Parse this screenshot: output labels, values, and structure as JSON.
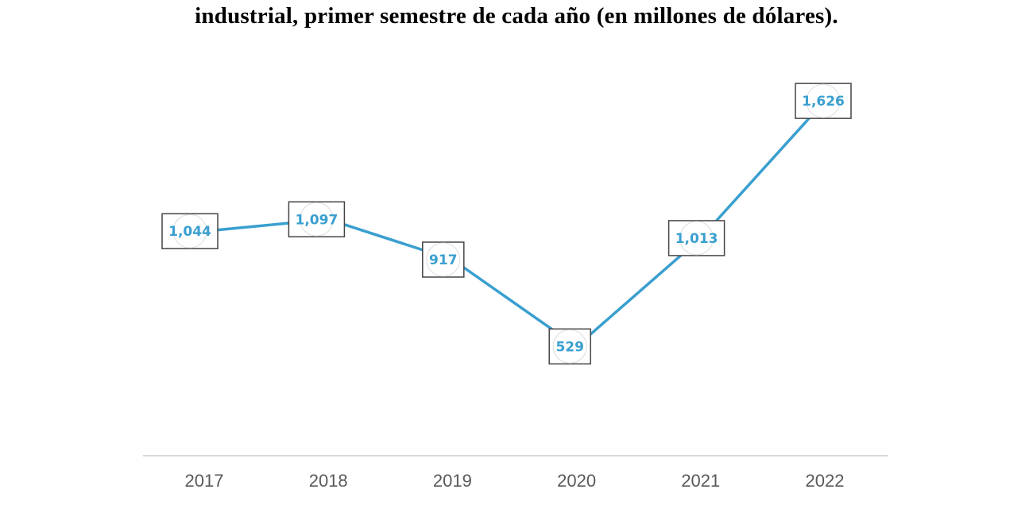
{
  "chart_data": {
    "type": "line",
    "title": "industrial, primer semestre de cada año (en millones de dólares).",
    "categories": [
      "2017",
      "2018",
      "2019",
      "2020",
      "2021",
      "2022"
    ],
    "series": [
      {
        "values": [
          1044,
          1097,
          917,
          529,
          1013,
          1626
        ]
      }
    ],
    "data_labels": [
      "1,044",
      "1,097",
      "917",
      "529",
      "1,013",
      "1,626"
    ],
    "xlabel": "",
    "ylabel": "",
    "ylim": [
      0,
      1900
    ],
    "grid": false,
    "legend": "none",
    "colors": {
      "line": "#3a9fd0",
      "label_text": "#3a9fd0",
      "label_border": "#444444",
      "axis": "#d9d9d9",
      "tick_text": "#595959"
    }
  }
}
